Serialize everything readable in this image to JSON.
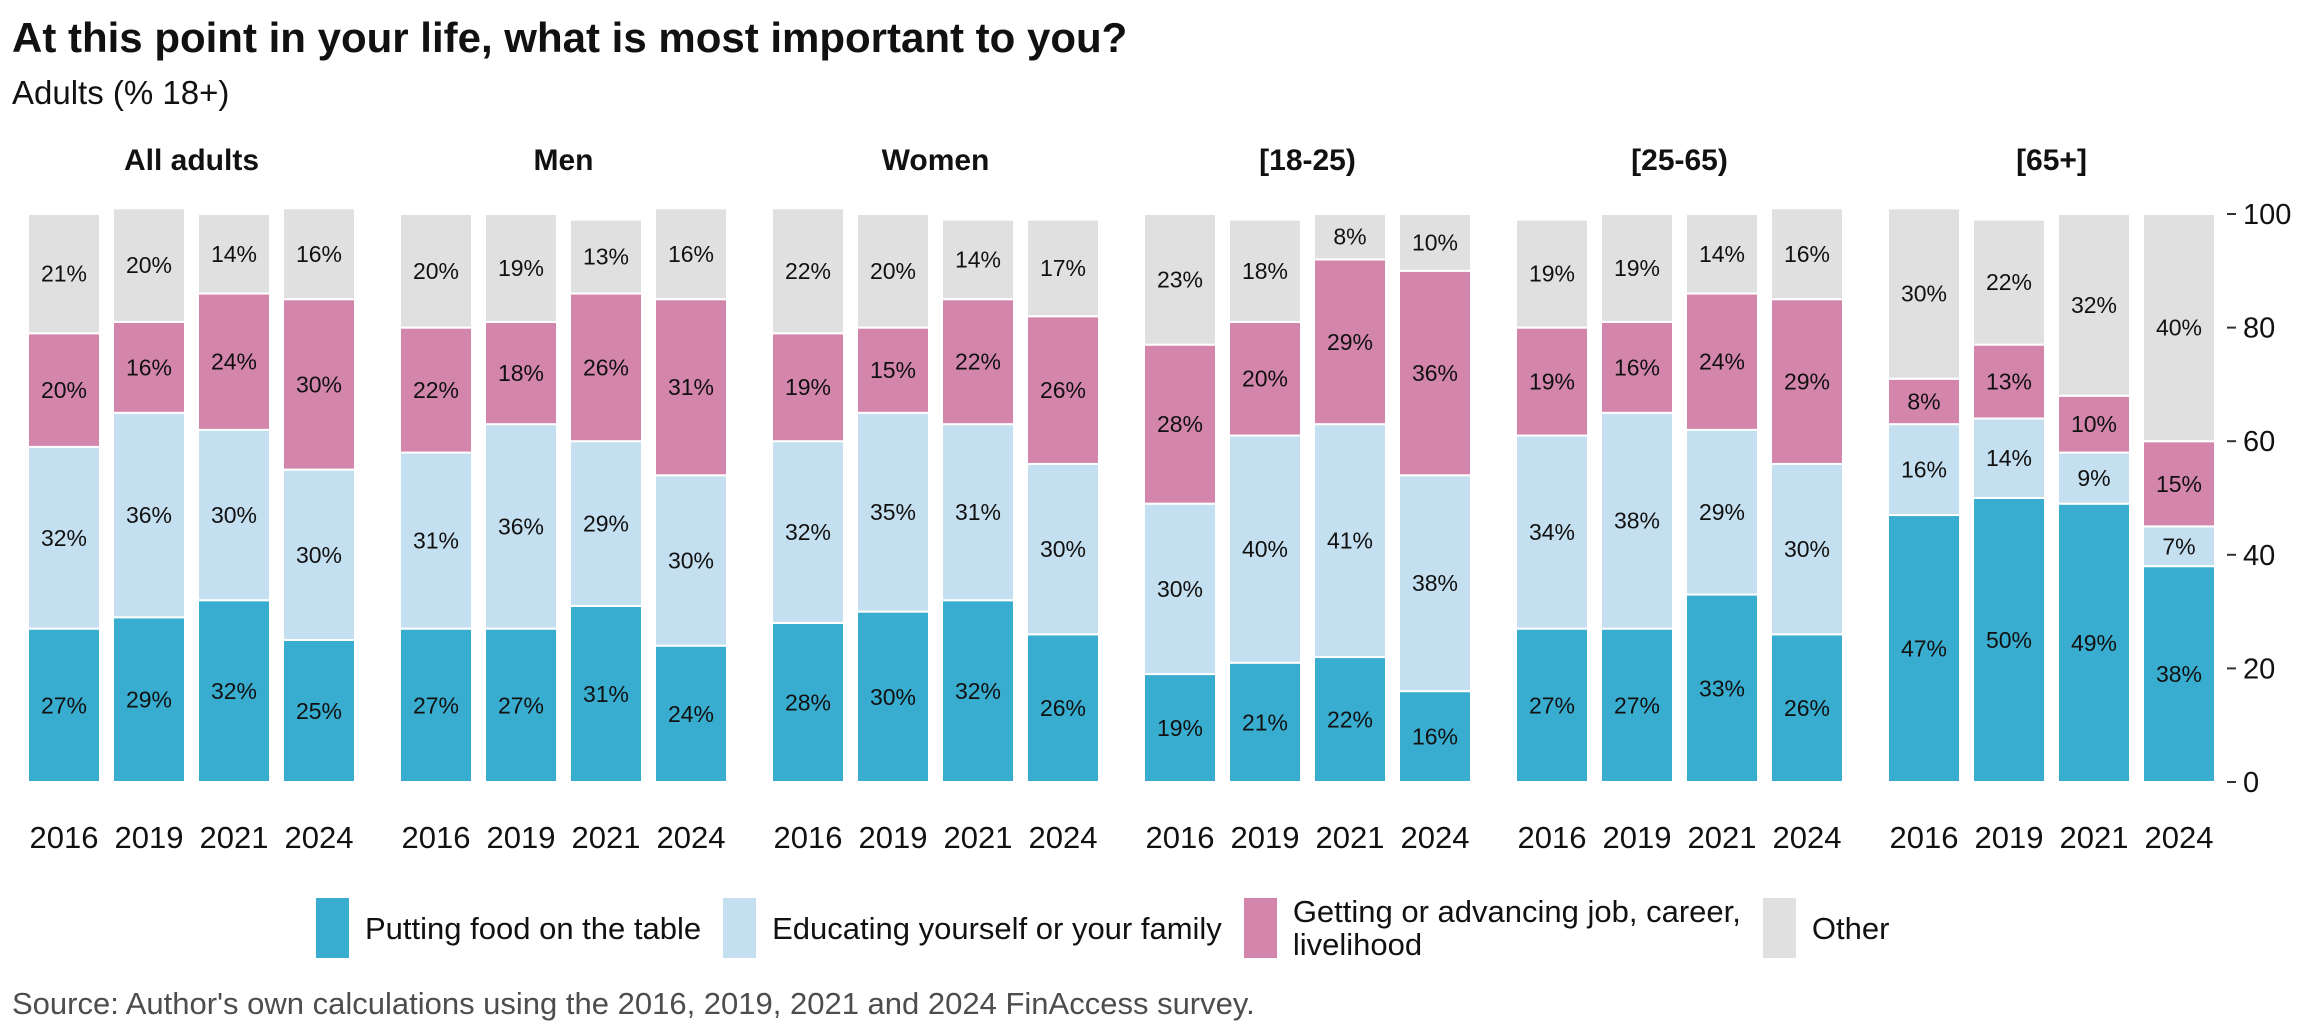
{
  "title": "At this point in your life, what is most important to you?",
  "subtitle": "Adults (% 18+)",
  "source": "Source: Author's own calculations using the 2016, 2019, 2021 and 2024 FinAccess survey.",
  "colors": {
    "food": "#38adcf",
    "education": "#c4dff0",
    "career": "#d385ab",
    "other": "#e0e0e0"
  },
  "legend": [
    {
      "key": "food",
      "label": "Putting food on the table"
    },
    {
      "key": "education",
      "label": "Educating yourself or your family"
    },
    {
      "key": "career",
      "label": "Getting or advancing job, career,\nlivelihood"
    },
    {
      "key": "other",
      "label": "Other"
    }
  ],
  "chart_data": {
    "type": "bar",
    "stacked": true,
    "categories": [
      "2016",
      "2019",
      "2021",
      "2024"
    ],
    "ylim": [
      0,
      100
    ],
    "yticks": [
      0,
      20,
      40,
      60,
      80,
      100
    ],
    "y_axis_side": "right",
    "legend_position": "bottom",
    "series_keys": [
      "food",
      "education",
      "career",
      "other"
    ],
    "panels": [
      {
        "name": "All adults",
        "labels": {
          "food": [
            "27%",
            "29%",
            "32%",
            "25%"
          ],
          "education": [
            "32%",
            "36%",
            "30%",
            "30%"
          ],
          "career": [
            "20%",
            "16%",
            "24%",
            "30%"
          ],
          "other": [
            "21%",
            "20%",
            "14%",
            "16%"
          ]
        },
        "values": {
          "food": [
            27,
            29,
            32,
            25
          ],
          "education": [
            32,
            36,
            30,
            30
          ],
          "career": [
            20,
            16,
            24,
            30
          ],
          "other": [
            21,
            20,
            14,
            16
          ]
        }
      },
      {
        "name": "Men",
        "labels": {
          "food": [
            "27%",
            "27%",
            "31%",
            "24%"
          ],
          "education": [
            "31%",
            "36%",
            "29%",
            "30%"
          ],
          "career": [
            "22%",
            "18%",
            "26%",
            "31%"
          ],
          "other": [
            "20%",
            "19%",
            "13%",
            "16%"
          ]
        },
        "values": {
          "food": [
            27,
            27,
            31,
            24
          ],
          "education": [
            31,
            36,
            29,
            30
          ],
          "career": [
            22,
            18,
            26,
            31
          ],
          "other": [
            20,
            19,
            13,
            16
          ]
        }
      },
      {
        "name": "Women",
        "labels": {
          "food": [
            "28%",
            "30%",
            "32%",
            "26%"
          ],
          "education": [
            "32%",
            "35%",
            "31%",
            "30%"
          ],
          "career": [
            "19%",
            "15%",
            "22%",
            "26%"
          ],
          "other": [
            "22%",
            "20%",
            "14%",
            "17%"
          ]
        },
        "values": {
          "food": [
            28,
            30,
            32,
            26
          ],
          "education": [
            32,
            35,
            31,
            30
          ],
          "career": [
            19,
            15,
            22,
            26
          ],
          "other": [
            22,
            20,
            14,
            17
          ]
        }
      },
      {
        "name": "[18-25)",
        "labels": {
          "food": [
            "19%",
            "21%",
            "22%",
            "16%"
          ],
          "education": [
            "30%",
            "40%",
            "41%",
            "38%"
          ],
          "career": [
            "28%",
            "20%",
            "29%",
            "36%"
          ],
          "other": [
            "23%",
            "18%",
            "8%",
            "10%"
          ]
        },
        "values": {
          "food": [
            19,
            21,
            22,
            16
          ],
          "education": [
            30,
            40,
            41,
            38
          ],
          "career": [
            28,
            20,
            29,
            36
          ],
          "other": [
            23,
            18,
            8,
            10
          ]
        }
      },
      {
        "name": "[25-65)",
        "labels": {
          "food": [
            "27%",
            "27%",
            "33%",
            "26%"
          ],
          "education": [
            "34%",
            "38%",
            "29%",
            "30%"
          ],
          "career": [
            "19%",
            "16%",
            "24%",
            "29%"
          ],
          "other": [
            "19%",
            "19%",
            "14%",
            "16%"
          ]
        },
        "values": {
          "food": [
            27,
            27,
            33,
            26
          ],
          "education": [
            34,
            38,
            29,
            30
          ],
          "career": [
            19,
            16,
            24,
            29
          ],
          "other": [
            19,
            19,
            14,
            16
          ]
        }
      },
      {
        "name": "[65+]",
        "labels": {
          "food": [
            "47%",
            "50%",
            "49%",
            "38%"
          ],
          "education": [
            "16%",
            "14%",
            "9%",
            "7%"
          ],
          "career": [
            "8%",
            "13%",
            "10%",
            "15%"
          ],
          "other": [
            "30%",
            "22%",
            "32%",
            "40%"
          ]
        },
        "values": {
          "food": [
            47,
            50,
            49,
            38
          ],
          "education": [
            16,
            14,
            9,
            7
          ],
          "career": [
            8,
            13,
            10,
            15
          ],
          "other": [
            30,
            22,
            32,
            40
          ]
        }
      }
    ]
  }
}
